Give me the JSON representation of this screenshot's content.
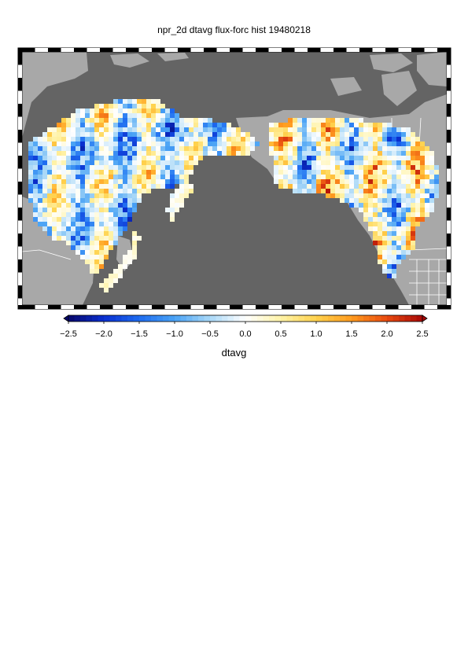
{
  "title": "npr_2d dtavg flux-forc hist 19480218",
  "colorbar": {
    "label": "dtavg",
    "ticks": [
      "-2.5",
      "-2.0",
      "-1.5",
      "-1.0",
      "-0.5",
      "0.0",
      "0.5",
      "1.0",
      "1.5",
      "2.0",
      "2.5"
    ],
    "min": -2.5,
    "max": 2.5,
    "colors": [
      "#08086b",
      "#0a2fd0",
      "#1f6cf0",
      "#4aa3f5",
      "#a9d8f7",
      "#ffffff",
      "#fff3a8",
      "#ffd24d",
      "#ff9b1f",
      "#e84a10",
      "#a80808"
    ]
  },
  "map": {
    "ocean_color": "#646464",
    "land_color": "#a8a8a8",
    "border_color": "#ffffff"
  }
}
